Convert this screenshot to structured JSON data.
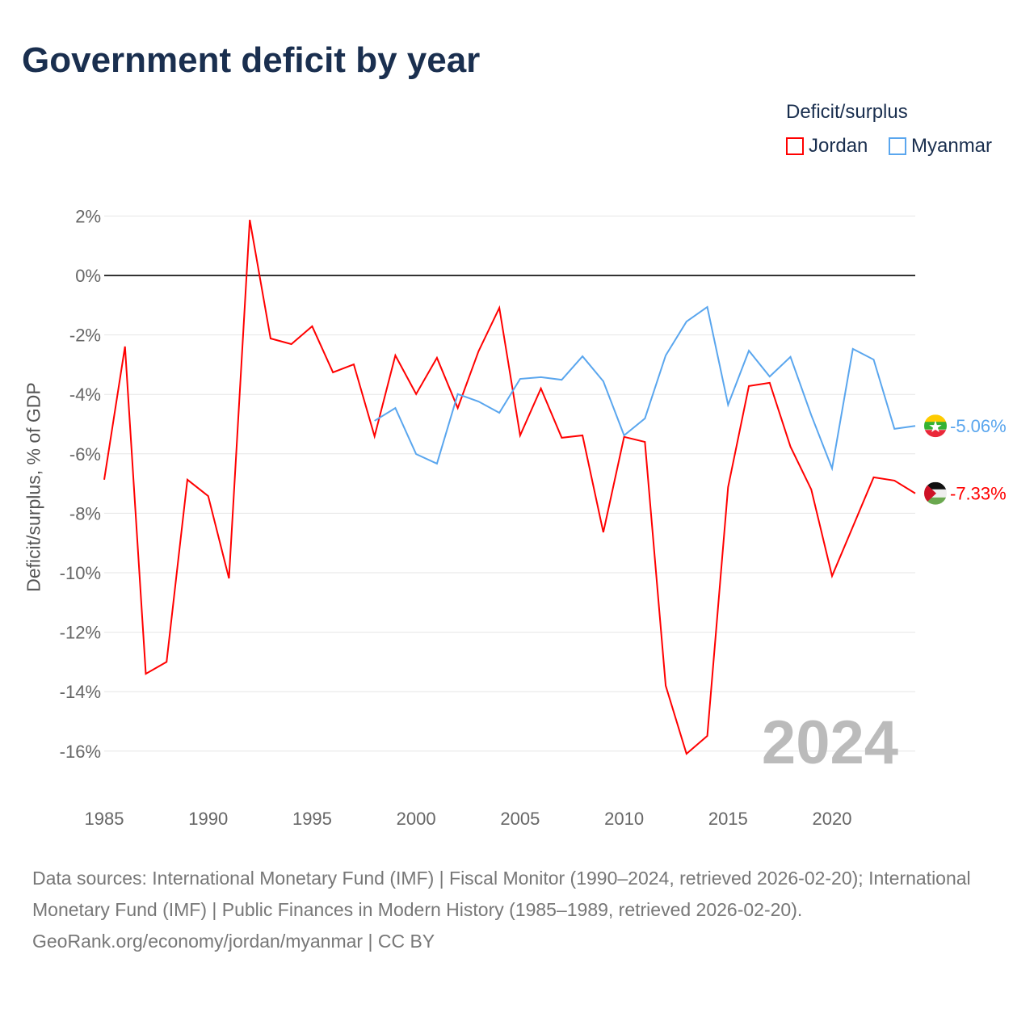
{
  "title": "Government deficit by year",
  "legend": {
    "title": "Deficit/surplus",
    "items": [
      {
        "name": "Jordan",
        "color": "#ff0000"
      },
      {
        "name": "Myanmar",
        "color": "#5aa6ee"
      }
    ]
  },
  "chart_data": {
    "type": "line",
    "title": "Government deficit by year",
    "xlabel": "",
    "ylabel": "Deficit/surplus, % of GDP",
    "xlim": [
      1985,
      2024
    ],
    "ylim": [
      -16,
      2
    ],
    "x_ticks": [
      1985,
      1990,
      1995,
      2000,
      2005,
      2010,
      2015,
      2020
    ],
    "y_ticks": [
      2,
      0,
      -2,
      -4,
      -6,
      -8,
      -10,
      -12,
      -14,
      -16
    ],
    "grid": true,
    "legend_position": "top-right",
    "year_watermark": "2024",
    "series": [
      {
        "name": "Jordan",
        "color": "#ff0000",
        "end_label": "-7.33%",
        "x": [
          1985,
          1986,
          1987,
          1988,
          1989,
          1990,
          1991,
          1992,
          1993,
          1994,
          1995,
          1996,
          1997,
          1998,
          1999,
          2000,
          2001,
          2002,
          2003,
          2004,
          2005,
          2006,
          2007,
          2008,
          2009,
          2010,
          2011,
          2012,
          2013,
          2014,
          2015,
          2016,
          2017,
          2018,
          2019,
          2020,
          2021,
          2022,
          2023,
          2024
        ],
        "values": [
          -6.87,
          -2.39,
          -13.4,
          -13.0,
          -6.87,
          -7.42,
          -10.19,
          1.87,
          -2.12,
          -2.31,
          -1.71,
          -3.26,
          -2.99,
          -5.41,
          -2.69,
          -3.99,
          -2.77,
          -4.46,
          -2.55,
          -1.09,
          -5.38,
          -3.8,
          -5.46,
          -5.38,
          -8.64,
          -5.43,
          -5.6,
          -13.8,
          -16.09,
          -15.49,
          -7.12,
          -3.72,
          -3.61,
          -5.76,
          -7.2,
          -10.11,
          -8.45,
          -6.79,
          -6.9,
          -7.33
        ]
      },
      {
        "name": "Myanmar",
        "color": "#5aa6ee",
        "end_label": "-5.06%",
        "x": [
          1998,
          1999,
          2000,
          2001,
          2002,
          2003,
          2004,
          2005,
          2006,
          2007,
          2008,
          2009,
          2010,
          2011,
          2012,
          2013,
          2014,
          2015,
          2016,
          2017,
          2018,
          2019,
          2020,
          2021,
          2022,
          2023,
          2024
        ],
        "values": [
          -4.89,
          -4.46,
          -6.01,
          -6.33,
          -3.99,
          -4.24,
          -4.62,
          -3.48,
          -3.42,
          -3.51,
          -2.72,
          -3.56,
          -5.38,
          -4.81,
          -2.69,
          -1.55,
          -1.06,
          -4.35,
          -2.53,
          -3.4,
          -2.74,
          -4.7,
          -6.49,
          -2.47,
          -2.83,
          -5.16,
          -5.06
        ]
      }
    ]
  },
  "footer": {
    "line1": "Data sources: International Monetary Fund (IMF) | Fiscal Monitor (1990–2024, retrieved 2026-02-20); International Monetary Fund (IMF) | Public Finances in Modern History (1985–1989, retrieved 2026-02-20).",
    "line2": "GeoRank.org/economy/jordan/myanmar | CC BY"
  }
}
